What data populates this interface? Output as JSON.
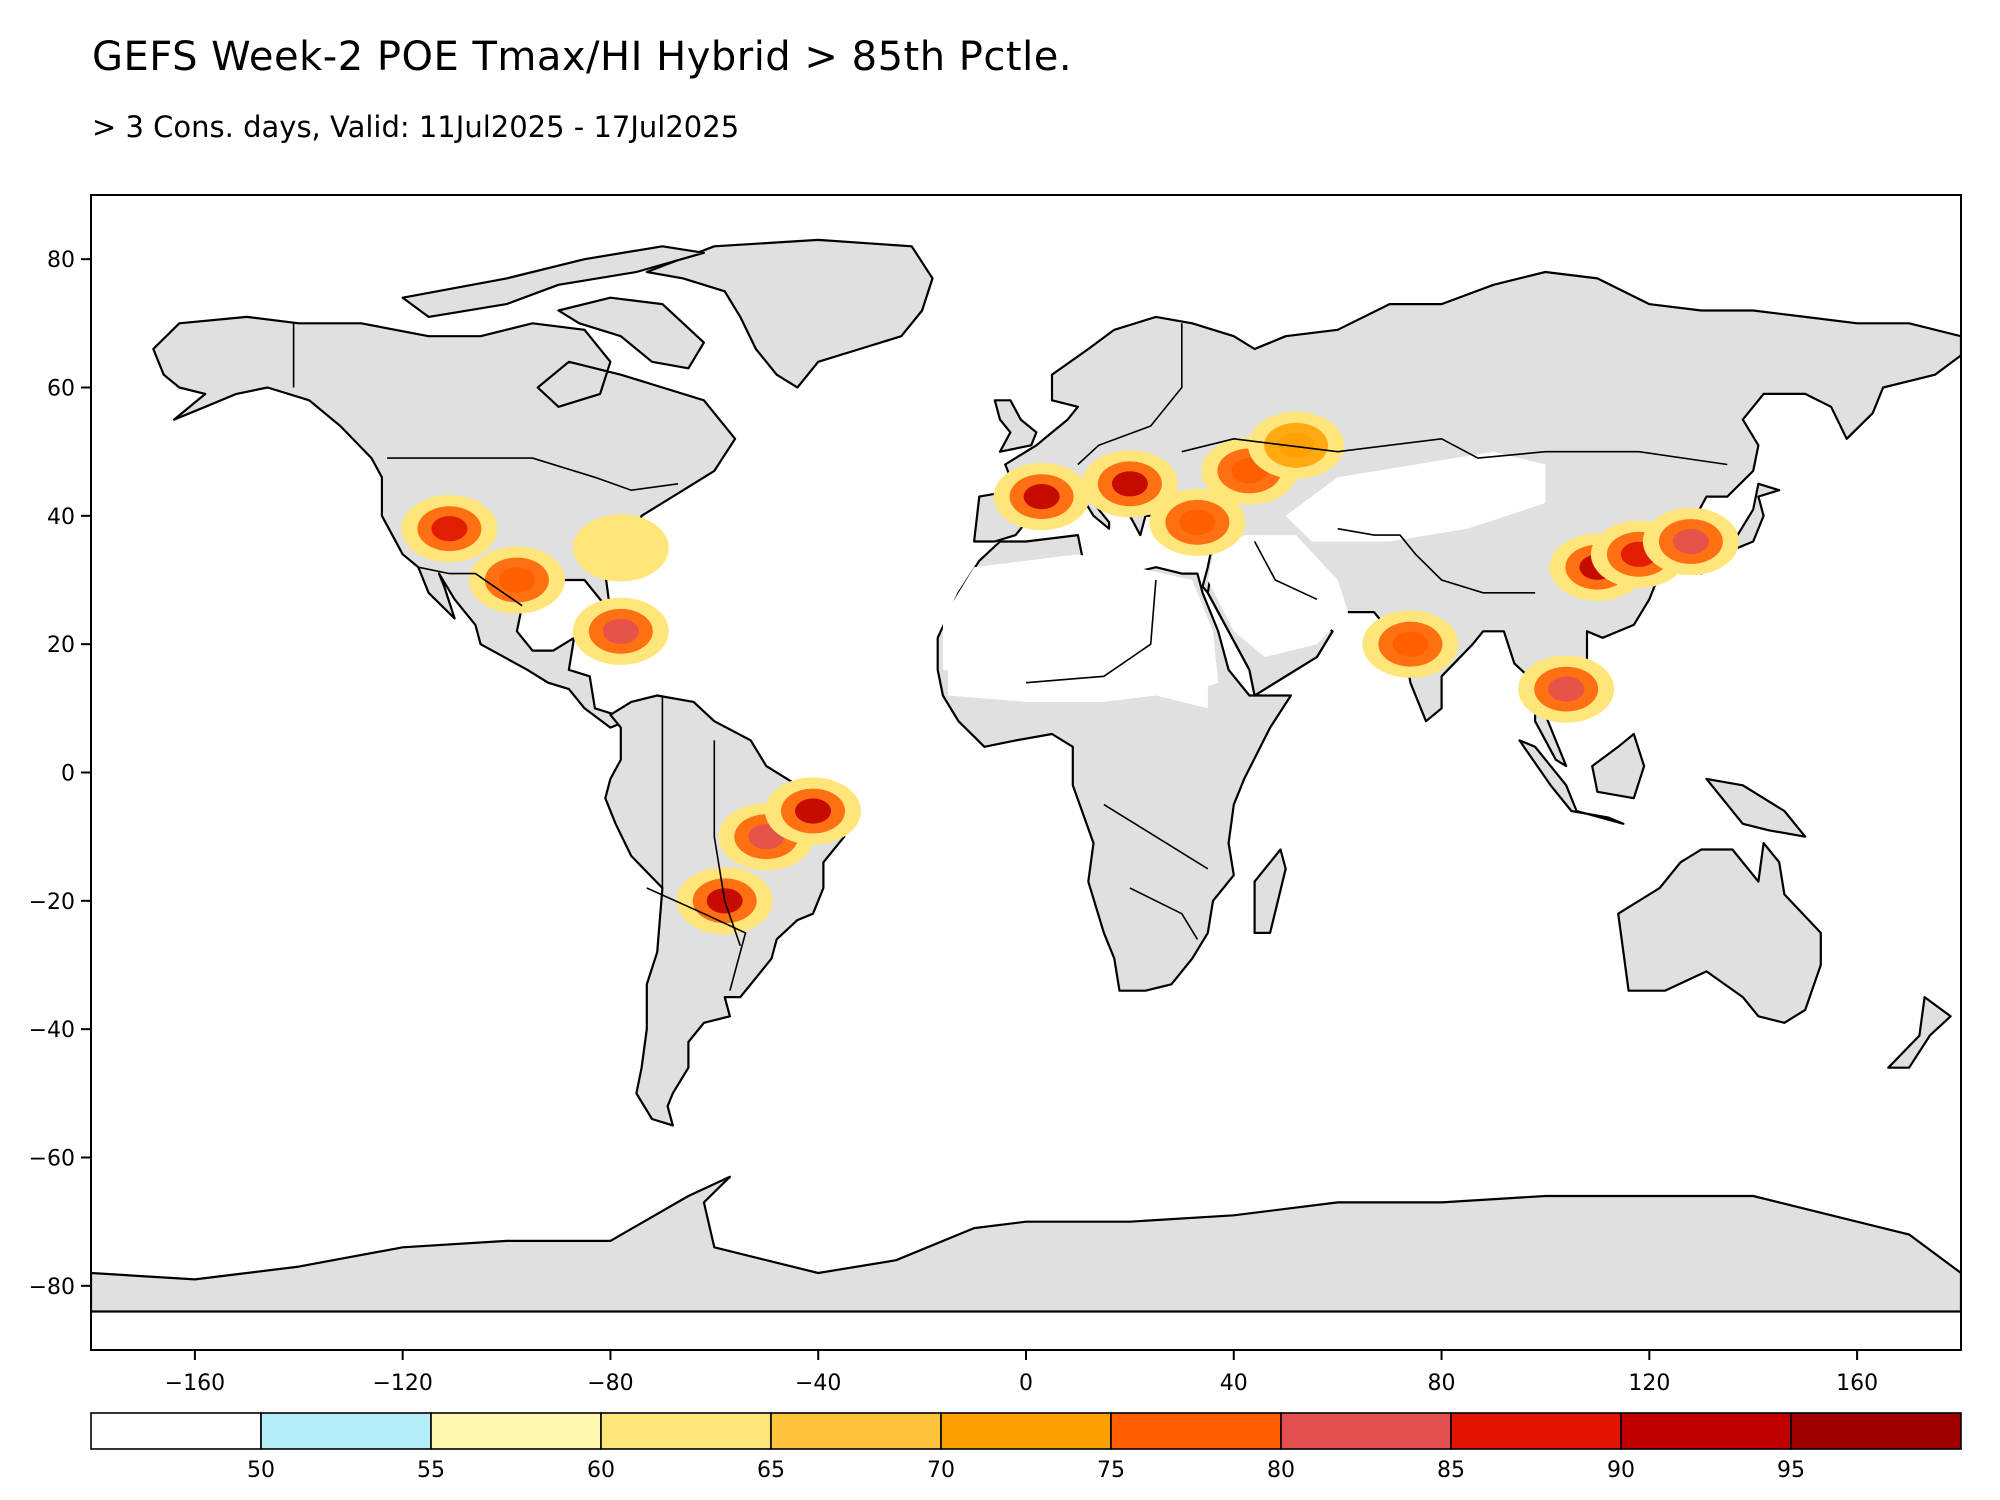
{
  "title": "GEFS Week-2 POE Tmax/HI Hybrid > 85th Pctle.",
  "subtitle": "> 3 Cons. days, Valid: 11Jul2025 - 17Jul2025",
  "map": {
    "lon_range": [
      -180,
      180
    ],
    "lat_range": [
      -90,
      90
    ],
    "x_ticks": [
      -160,
      -120,
      -80,
      -40,
      0,
      40,
      80,
      120,
      160
    ],
    "y_ticks": [
      80,
      60,
      40,
      20,
      0,
      -20,
      -40,
      -60,
      -80
    ],
    "land_color": "#e0e0e0",
    "land_clipped_fill": "#ffffff",
    "hotspots": [
      {
        "name": "us-southwest",
        "lon": -111,
        "lat": 38,
        "level": 85
      },
      {
        "name": "us-texas",
        "lon": -98,
        "lat": 30,
        "level": 75
      },
      {
        "name": "us-east",
        "lon": -78,
        "lat": 35,
        "level": 60
      },
      {
        "name": "cuba",
        "lon": -78,
        "lat": 22,
        "level": 80
      },
      {
        "name": "brazil-central",
        "lon": -50,
        "lat": -10,
        "level": 80
      },
      {
        "name": "brazil-northeast",
        "lon": -41,
        "lat": -6,
        "level": 90
      },
      {
        "name": "paraguay",
        "lon": -58,
        "lat": -20,
        "level": 90
      },
      {
        "name": "spain-france",
        "lon": 3,
        "lat": 43,
        "level": 90
      },
      {
        "name": "balkans",
        "lon": 20,
        "lat": 45,
        "level": 90
      },
      {
        "name": "turkey",
        "lon": 33,
        "lat": 39,
        "level": 75
      },
      {
        "name": "ukraine-russia",
        "lon": 43,
        "lat": 47,
        "level": 75
      },
      {
        "name": "kazakhstan",
        "lon": 52,
        "lat": 51,
        "level": 70
      },
      {
        "name": "india-west",
        "lon": 74,
        "lat": 20,
        "level": 75
      },
      {
        "name": "china-central",
        "lon": 110,
        "lat": 32,
        "level": 90
      },
      {
        "name": "china-east",
        "lon": 118,
        "lat": 34,
        "level": 85
      },
      {
        "name": "korea-japan",
        "lon": 128,
        "lat": 36,
        "level": 80
      },
      {
        "name": "southeast-asia",
        "lon": 104,
        "lat": 13,
        "level": 80
      }
    ]
  },
  "legend": {
    "colors": [
      "#ffffff",
      "#b4ecf8",
      "#fff8b0",
      "#ffe57a",
      "#ffc43c",
      "#ffa000",
      "#ff5c00",
      "#e35050",
      "#e01400",
      "#c00000",
      "#a00000"
    ],
    "labels": [
      "50",
      "55",
      "60",
      "65",
      "70",
      "75",
      "80",
      "85",
      "90",
      "95"
    ]
  }
}
